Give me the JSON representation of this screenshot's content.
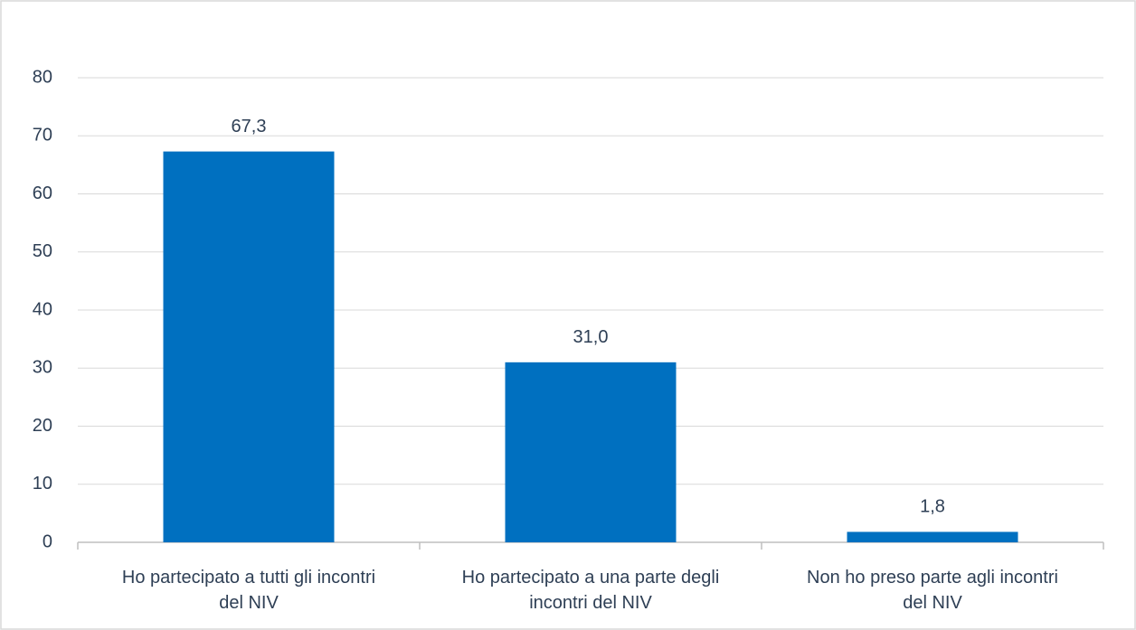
{
  "chart_data": {
    "type": "bar",
    "categories": [
      "Ho partecipato a tutti gli incontri del NIV",
      "Ho partecipato a una parte degli incontri del NIV",
      "Non ho preso parte agli incontri del NIV"
    ],
    "values": [
      67.3,
      31.0,
      1.8
    ],
    "value_labels": [
      "67,3",
      "31,0",
      "1,8"
    ],
    "color": "#0070c0",
    "ylim": [
      0,
      80
    ],
    "yticks": [
      0,
      10,
      20,
      30,
      40,
      50,
      60,
      70,
      80
    ],
    "grid": true
  }
}
